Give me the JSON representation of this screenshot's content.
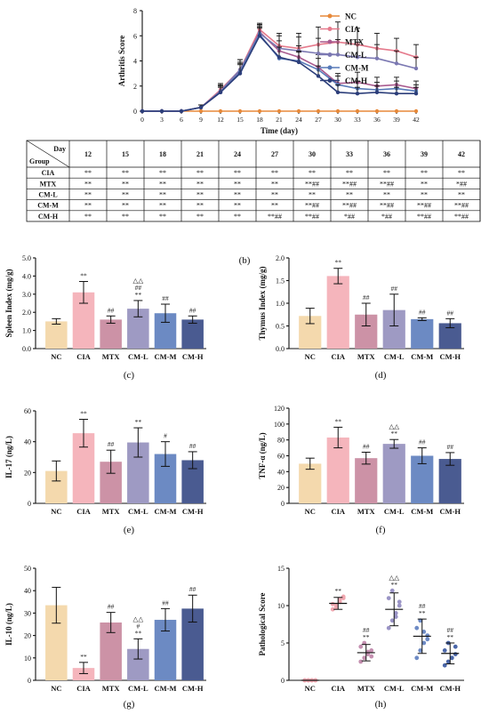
{
  "panel_labels": [
    "(b)",
    "(c)",
    "(d)",
    "(e)",
    "(f)",
    "(g)",
    "(h)"
  ],
  "colors": {
    "NC": "#f4d9ad",
    "CIA": "#f5b5bc",
    "MTX": "#cc92a6",
    "CM-L": "#9e9ac3",
    "CM-M": "#6c8ac3",
    "CM-H": "#4a5b91"
  },
  "groups": [
    "NC",
    "CIA",
    "MTX",
    "CM-L",
    "CM-M",
    "CM-H"
  ],
  "table": {
    "corner_day": "Day",
    "corner_group": "Group",
    "days": [
      "12",
      "15",
      "18",
      "21",
      "24",
      "27",
      "30",
      "33",
      "36",
      "39",
      "42"
    ],
    "rows": [
      {
        "group": "CIA",
        "cells": [
          "**",
          "**",
          "**",
          "**",
          "**",
          "**",
          "**",
          "**",
          "**",
          "**",
          "**"
        ]
      },
      {
        "group": "MTX",
        "cells": [
          "**",
          "**",
          "**",
          "**",
          "**",
          "**",
          "**##",
          "**##",
          "**##",
          "**",
          "*##"
        ]
      },
      {
        "group": "CM-L",
        "cells": [
          "**",
          "**",
          "**",
          "**",
          "**",
          "**",
          "**",
          "**",
          "**",
          "**",
          "**"
        ]
      },
      {
        "group": "CM-M",
        "cells": [
          "**",
          "**",
          "**",
          "**",
          "**",
          "**",
          "**##",
          "**##",
          "**##",
          "**##",
          "**##"
        ]
      },
      {
        "group": "CM-H",
        "cells": [
          "**",
          "**",
          "**",
          "**",
          "**",
          "**##",
          "**##",
          "*##",
          "*##",
          "**##",
          "**##"
        ]
      }
    ]
  },
  "chart_data": [
    {
      "type": "line",
      "id": "arthritis",
      "xlabel": "Time (day)",
      "ylabel": "Arthritis Score",
      "x": [
        0,
        3,
        6,
        9,
        12,
        15,
        18,
        21,
        24,
        27,
        30,
        33,
        36,
        39,
        42
      ],
      "xlim": [
        0,
        42
      ],
      "ylim": [
        0,
        8
      ],
      "yticks": [
        0,
        2,
        4,
        6,
        8
      ],
      "series": [
        {
          "name": "NC",
          "marker": "diamond",
          "values": [
            0,
            0,
            0,
            0,
            0,
            0,
            0,
            0,
            0,
            0,
            0,
            0,
            0,
            0,
            0
          ],
          "err": [
            0,
            0,
            0,
            0,
            0,
            0,
            0,
            0,
            0,
            0,
            0,
            0,
            0,
            0,
            0
          ]
        },
        {
          "name": "CIA",
          "marker": "circle",
          "values": [
            0,
            0,
            0,
            0.3,
            1.7,
            3.3,
            6.5,
            5.2,
            5.0,
            5.3,
            5.5,
            5.3,
            5.0,
            4.8,
            4.3
          ],
          "err": [
            0,
            0,
            0,
            0.2,
            0.5,
            0.8,
            0.5,
            1.0,
            1.2,
            1.4,
            1.6,
            1.3,
            1.2,
            1.0,
            1.0
          ]
        },
        {
          "name": "MTX",
          "marker": "triangle",
          "values": [
            0,
            0,
            0,
            0.3,
            1.5,
            3.2,
            6.3,
            4.8,
            4.3,
            3.5,
            2.2,
            2.3,
            2.0,
            2.1,
            1.8
          ],
          "err": [
            0,
            0,
            0,
            0.2,
            0.5,
            0.7,
            0.6,
            0.8,
            0.9,
            1.0,
            0.8,
            0.8,
            0.7,
            0.6,
            0.6
          ]
        },
        {
          "name": "CM-L",
          "marker": "triangle-down",
          "values": [
            0,
            0,
            0,
            0.3,
            1.6,
            3.3,
            6.2,
            5.0,
            4.8,
            4.6,
            4.5,
            4.3,
            4.2,
            3.8,
            3.4
          ],
          "err": [
            0,
            0,
            0,
            0.2,
            0.5,
            0.8,
            0.6,
            1.0,
            1.1,
            1.2,
            1.2,
            1.2,
            1.1,
            1.0,
            0.9
          ]
        },
        {
          "name": "CM-M",
          "marker": "diamond-filled",
          "values": [
            0,
            0,
            0,
            0.3,
            1.5,
            3.1,
            6.1,
            4.2,
            4.0,
            3.3,
            2.1,
            1.8,
            1.7,
            1.8,
            1.6
          ],
          "err": [
            0,
            0,
            0,
            0.2,
            0.5,
            0.7,
            0.6,
            0.9,
            0.8,
            0.9,
            0.7,
            0.6,
            0.6,
            0.6,
            0.5
          ]
        },
        {
          "name": "CM-H",
          "marker": "square",
          "values": [
            0,
            0,
            0,
            0.3,
            1.5,
            3.0,
            6.0,
            4.3,
            3.9,
            2.8,
            1.5,
            1.4,
            1.5,
            1.4,
            1.4
          ],
          "err": [
            0,
            0,
            0,
            0.2,
            0.4,
            0.7,
            0.6,
            0.8,
            0.8,
            0.8,
            0.6,
            0.5,
            0.5,
            0.5,
            0.5
          ]
        }
      ]
    },
    {
      "type": "bar",
      "id": "c",
      "ylabel": "Spleen Index (mg/g)",
      "categories": [
        "NC",
        "CIA",
        "MTX",
        "CM-L",
        "CM-M",
        "CM-H"
      ],
      "values": [
        1.5,
        3.1,
        1.6,
        2.2,
        1.95,
        1.6
      ],
      "err": [
        0.15,
        0.6,
        0.2,
        0.45,
        0.5,
        0.2
      ],
      "annotations": [
        [],
        [
          "**"
        ],
        [
          "##"
        ],
        [
          "**",
          "##",
          "△△"
        ],
        [
          "##"
        ],
        [
          "##"
        ]
      ],
      "ylim": [
        0,
        5
      ],
      "yticks": [
        "0.0",
        "1.0",
        "2.0",
        "3.0",
        "4.0",
        "5.0"
      ]
    },
    {
      "type": "bar",
      "id": "d",
      "ylabel": "Thymus Index (mg/g)",
      "categories": [
        "NC",
        "CIA",
        "MTX",
        "CM-L",
        "CM-M",
        "CM-H"
      ],
      "values": [
        0.72,
        1.6,
        0.75,
        0.85,
        0.65,
        0.56
      ],
      "err": [
        0.17,
        0.17,
        0.25,
        0.35,
        0.03,
        0.1
      ],
      "annotations": [
        [],
        [
          "**"
        ],
        [
          "##"
        ],
        [
          "##"
        ],
        [
          "##"
        ],
        [
          "##"
        ]
      ],
      "ylim": [
        0,
        2
      ],
      "yticks": [
        "0.0",
        "0.5",
        "1.0",
        "1.5",
        "2.0"
      ]
    },
    {
      "type": "bar",
      "id": "e",
      "ylabel": "IL-17 (ng/L)",
      "categories": [
        "NC",
        "CIA",
        "MTX",
        "CM-L",
        "CM-M",
        "CM-H"
      ],
      "values": [
        21,
        45.5,
        27,
        39.5,
        32,
        28
      ],
      "err": [
        6.5,
        9,
        7.5,
        9.5,
        8,
        5.5
      ],
      "annotations": [
        [],
        [
          "**"
        ],
        [
          "##"
        ],
        [
          "**"
        ],
        [
          "#"
        ],
        [
          "##"
        ]
      ],
      "ylim": [
        0,
        60
      ],
      "yticks": [
        "0",
        "20",
        "40",
        "60"
      ]
    },
    {
      "type": "bar",
      "id": "f",
      "ylabel": "TNF-α (ng/L)",
      "categories": [
        "NC",
        "CIA",
        "MTX",
        "CM-L",
        "CM-M",
        "CM-H"
      ],
      "values": [
        50,
        83,
        57,
        75,
        60,
        56
      ],
      "err": [
        7,
        13,
        7.5,
        5.5,
        10,
        8
      ],
      "annotations": [
        [],
        [
          "**"
        ],
        [
          "##"
        ],
        [
          "**",
          "△△"
        ],
        [
          "##"
        ],
        [
          "##"
        ]
      ],
      "ylim": [
        0,
        120
      ],
      "yticks": [
        "0",
        "20",
        "40",
        "60",
        "80",
        "100",
        "120"
      ]
    },
    {
      "type": "bar",
      "id": "g",
      "ylabel": "IL-10 (ng/L)",
      "categories": [
        "NC",
        "CIA",
        "MTX",
        "CM-L",
        "CM-M",
        "CM-H"
      ],
      "values": [
        33.5,
        5.5,
        25.8,
        14,
        27,
        32
      ],
      "err": [
        8,
        2.5,
        4.5,
        4.5,
        5,
        6
      ],
      "annotations": [
        [],
        [
          "**"
        ],
        [
          "##"
        ],
        [
          "**",
          "#",
          "△△"
        ],
        [
          "##"
        ],
        [
          "##"
        ]
      ],
      "ylim": [
        0,
        50
      ],
      "yticks": [
        "0",
        "10",
        "20",
        "30",
        "40",
        "50"
      ]
    },
    {
      "type": "scatter",
      "id": "h",
      "ylabel": "Pathological Score",
      "categories": [
        "NC",
        "CIA",
        "MTX",
        "CM-L",
        "CM-M",
        "CM-H"
      ],
      "means": [
        0,
        10.3,
        3.7,
        9.5,
        5.9,
        3.6
      ],
      "sd": [
        0,
        0.8,
        1.1,
        2.2,
        2.3,
        1.4
      ],
      "points": [
        [
          0,
          0,
          0,
          0,
          0,
          0,
          0,
          0
        ],
        [
          9.5,
          10,
          10.5,
          11,
          10.2,
          9.8,
          10.8,
          11.2
        ],
        [
          2.5,
          3,
          3.5,
          4,
          4.5,
          5,
          3.8,
          3.2
        ],
        [
          7,
          8,
          9,
          10,
          11,
          12,
          8.5,
          10.5
        ],
        [
          3,
          4,
          5,
          6,
          7,
          8,
          6.5,
          5.5
        ],
        [
          2,
          2.5,
          3,
          3.5,
          4,
          5,
          3,
          4.5
        ]
      ],
      "annotations": [
        [],
        [
          "**"
        ],
        [
          "**",
          "##"
        ],
        [
          "**",
          "△△"
        ],
        [
          "**",
          "##"
        ],
        [
          "**",
          "##"
        ]
      ],
      "ylim": [
        0,
        15
      ],
      "yticks": [
        "0",
        "5",
        "10",
        "15"
      ]
    }
  ]
}
